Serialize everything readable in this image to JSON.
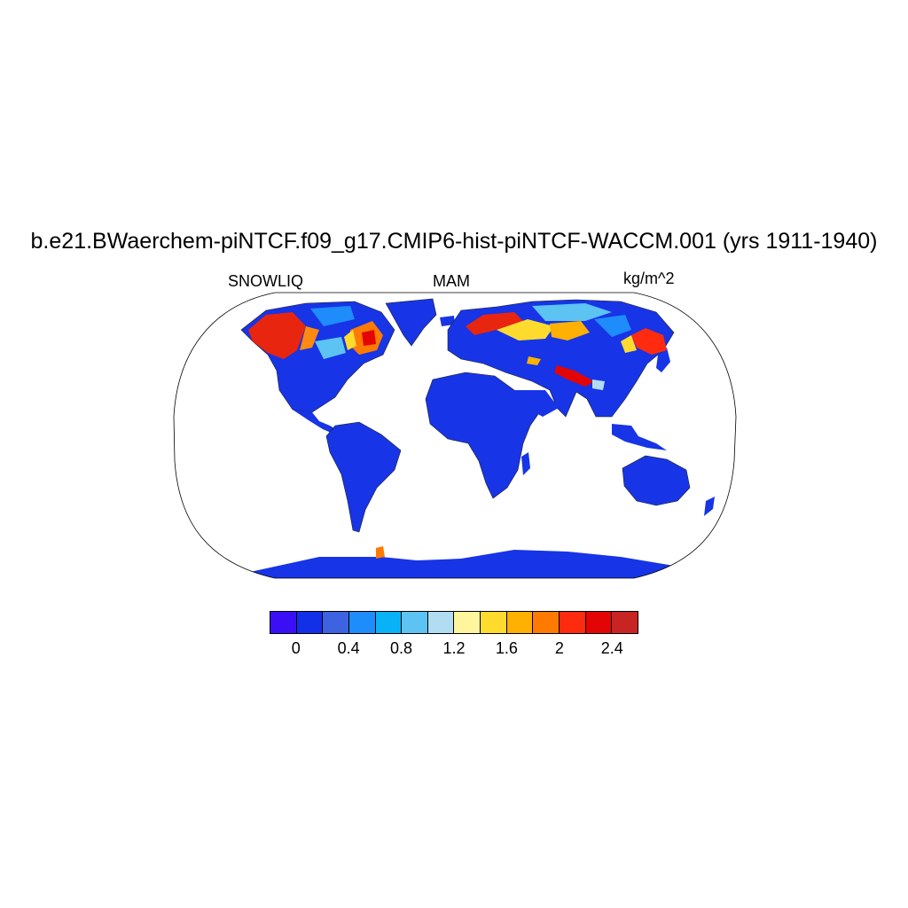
{
  "title": "b.e21.BWaerchem-piNTCF.f09_g17.CMIP6-hist-piNTCF-WACCM.001 (yrs 1911-1940)",
  "left_label": "SNOWLIQ",
  "center_label": "MAM",
  "right_label": "kg/m^2",
  "projection": "Robinson (global)",
  "colorbar": {
    "colors": [
      "#3b0ff5",
      "#1230e8",
      "#3d63e0",
      "#1e8cfa",
      "#09b2f7",
      "#5cc3f2",
      "#b2dcf2",
      "#fff59c",
      "#ffdb2e",
      "#ffb000",
      "#ff7a00",
      "#ff2b0f",
      "#e30505",
      "#c92424"
    ],
    "tick_labels": [
      "0",
      "0.4",
      "0.8",
      "1.2",
      "1.6",
      "2",
      "2.4"
    ]
  },
  "palette": {
    "land_base": "#1734e6",
    "ocean": "#ffffff",
    "outline": "#000000"
  }
}
